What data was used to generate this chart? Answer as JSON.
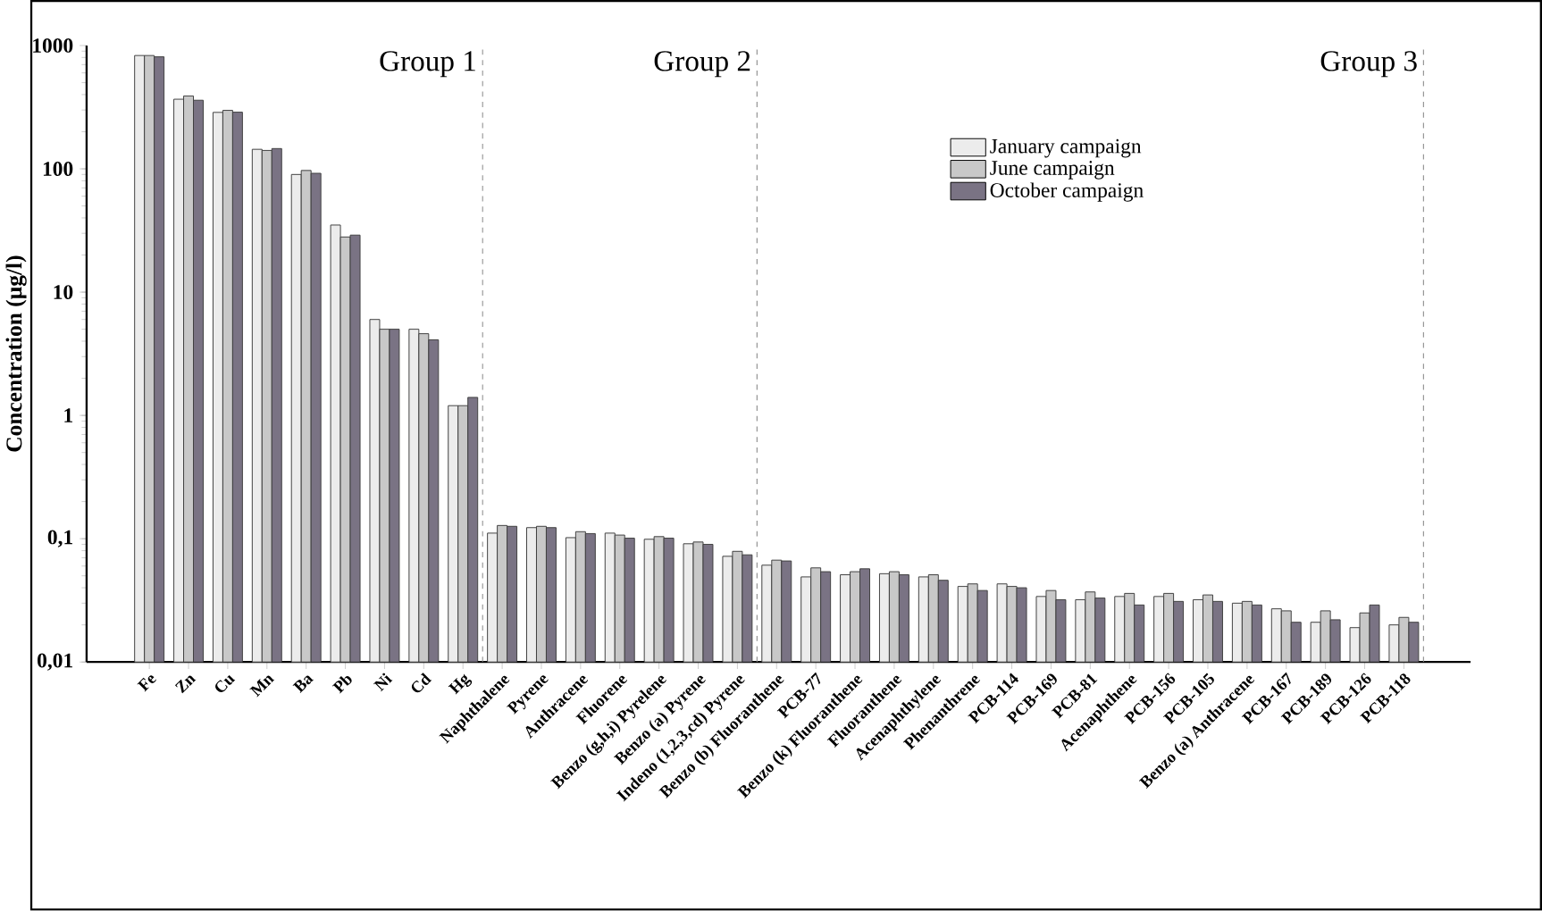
{
  "chart_data": {
    "type": "bar",
    "ylabel": "Concentration (µg/l)",
    "categories": [
      "Fe",
      "Zn",
      "Cu",
      "Mn",
      "Ba",
      "Pb",
      "Ni",
      "Cd",
      "Hg",
      "Naphthalene",
      "Pyrene",
      "Anthracene",
      "Fluorene",
      "Benzo (g,h,i) Pyrelene",
      "Benzo (a) Pyrene",
      "Indeno (1,2,3,cd) Pyrene",
      "Benzo (b) Fluoranthene",
      "PCB-77",
      "Benzo (k) Fluoranthene",
      "Fluoranthene",
      "Acenaphthylene",
      "Phenanthrene",
      "PCB-114",
      "PCB-169",
      "PCB-81",
      "Acenaphthene",
      "PCB-156",
      "PCB-105",
      "Benzo (a) Anthracene",
      "PCB-167",
      "PCB-189",
      "PCB-126",
      "PCB-118"
    ],
    "series": [
      {
        "name": "January campaign",
        "color": "#ececec",
        "values": [
          830,
          367,
          287,
          144,
          90,
          35,
          6.0,
          5.0,
          1.2,
          0.111,
          0.123,
          0.102,
          0.111,
          0.099,
          0.091,
          0.072,
          0.061,
          0.049,
          0.051,
          0.052,
          0.049,
          0.041,
          0.043,
          0.034,
          0.032,
          0.034,
          0.034,
          0.032,
          0.03,
          0.027,
          0.021,
          0.019,
          0.02
        ]
      },
      {
        "name": "June campaign",
        "color": "#c8c8c8",
        "values": [
          830,
          390,
          298,
          141,
          97,
          28,
          5.0,
          4.6,
          1.2,
          0.128,
          0.126,
          0.114,
          0.107,
          0.104,
          0.094,
          0.079,
          0.067,
          0.058,
          0.054,
          0.054,
          0.051,
          0.043,
          0.041,
          0.038,
          0.037,
          0.036,
          0.036,
          0.035,
          0.031,
          0.026,
          0.026,
          0.025,
          0.023
        ]
      },
      {
        "name": "October campaign",
        "color": "#7a7384",
        "values": [
          810,
          360,
          288,
          146,
          92,
          29,
          5.0,
          4.1,
          1.4,
          0.126,
          0.123,
          0.11,
          0.101,
          0.101,
          0.09,
          0.074,
          0.066,
          0.054,
          0.057,
          0.051,
          0.046,
          0.038,
          0.04,
          0.032,
          0.033,
          0.029,
          0.031,
          0.031,
          0.029,
          0.021,
          0.022,
          0.029,
          0.021
        ]
      }
    ],
    "log": "y",
    "ylim": [
      0.01,
      1000
    ],
    "yticks": [
      {
        "value": 0.01,
        "label": "0,01"
      },
      {
        "value": 0.1,
        "label": "0,1"
      },
      1,
      10,
      100,
      1000
    ],
    "legend": "top right",
    "annotations": [
      "Group 1",
      "Group 2",
      "Group 3"
    ]
  }
}
